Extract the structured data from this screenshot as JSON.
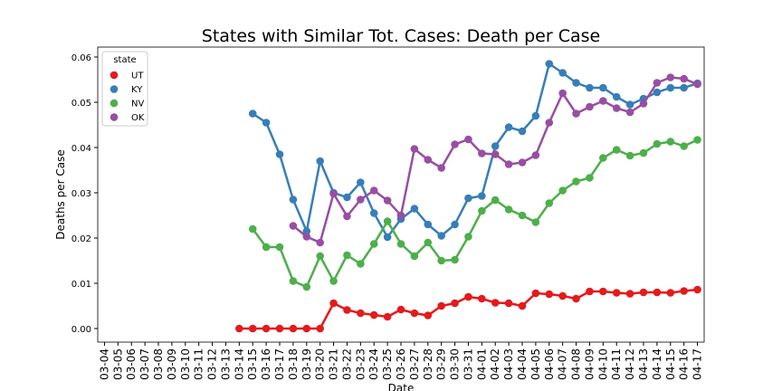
{
  "chart_data": {
    "type": "line",
    "title": "States with Similar Tot. Cases: Death per Case",
    "x_label": "Date",
    "y_label": "Deaths per Case",
    "legend_title": "state",
    "legend_position": "upper left",
    "markers": true,
    "categories": [
      "03-04",
      "03-05",
      "03-06",
      "03-07",
      "03-08",
      "03-09",
      "03-10",
      "03-11",
      "03-12",
      "03-13",
      "03-14",
      "03-15",
      "03-16",
      "03-17",
      "03-18",
      "03-19",
      "03-20",
      "03-21",
      "03-22",
      "03-23",
      "03-24",
      "03-25",
      "03-26",
      "03-27",
      "03-28",
      "03-29",
      "03-30",
      "03-31",
      "04-01",
      "04-02",
      "04-03",
      "04-04",
      "04-05",
      "04-06",
      "04-07",
      "04-08",
      "04-09",
      "04-10",
      "04-11",
      "04-12",
      "04-13",
      "04-14",
      "04-15",
      "04-16",
      "04-17"
    ],
    "ylim": [
      -0.003,
      0.0622
    ],
    "yticks": [
      {
        "value": 0,
        "label": "0.00"
      },
      {
        "value": 0.01,
        "label": "0.01"
      },
      {
        "value": 0.02,
        "label": "0.02"
      },
      {
        "value": 0.03,
        "label": "0.03"
      },
      {
        "value": 0.04,
        "label": "0.04"
      },
      {
        "value": 0.05,
        "label": "0.05"
      },
      {
        "value": 0.06,
        "label": "0.06"
      }
    ],
    "series": [
      {
        "name": "UT",
        "color": "#e41a1c",
        "values": [
          null,
          null,
          null,
          null,
          null,
          null,
          null,
          null,
          null,
          null,
          0,
          0,
          0,
          0,
          0,
          0,
          0,
          0.0056,
          0.0041,
          0.0034,
          0.003,
          0.0026,
          0.0042,
          0.0034,
          0.0029,
          0.005,
          0.0056,
          0.007,
          0.0066,
          0.0057,
          0.0056,
          0.005,
          0.0078,
          0.0076,
          0.0072,
          0.0066,
          0.0082,
          0.0082,
          0.0079,
          0.0077,
          0.008,
          0.008,
          0.0079,
          0.0083,
          0.0086
        ]
      },
      {
        "name": "KY",
        "color": "#377eb8",
        "values": [
          null,
          null,
          null,
          null,
          null,
          null,
          null,
          null,
          null,
          null,
          null,
          0.0475,
          0.0455,
          0.0385,
          0.0285,
          0.0215,
          0.037,
          0.03,
          0.029,
          0.0323,
          0.0255,
          0.0202,
          0.0242,
          0.0265,
          0.023,
          0.0205,
          0.023,
          0.0288,
          0.0293,
          0.0403,
          0.0445,
          0.0436,
          0.047,
          0.0585,
          0.0565,
          0.0543,
          0.0532,
          0.0532,
          0.0512,
          0.0495,
          0.0508,
          0.0522,
          0.0532,
          0.0532,
          0.0542
        ]
      },
      {
        "name": "NV",
        "color": "#4daf4a",
        "values": [
          null,
          null,
          null,
          null,
          null,
          null,
          null,
          null,
          null,
          null,
          null,
          0.022,
          0.018,
          0.018,
          0.0105,
          0.0092,
          0.016,
          0.0105,
          0.0162,
          0.0143,
          0.0187,
          0.0237,
          0.0187,
          0.016,
          0.019,
          0.015,
          0.0152,
          0.0203,
          0.026,
          0.0284,
          0.0263,
          0.025,
          0.0235,
          0.0277,
          0.0305,
          0.0325,
          0.0333,
          0.0377,
          0.0395,
          0.0382,
          0.0388,
          0.0408,
          0.0413,
          0.0403,
          0.0417
        ]
      },
      {
        "name": "OK",
        "color": "#984ea3",
        "values": [
          null,
          null,
          null,
          null,
          null,
          null,
          null,
          null,
          null,
          null,
          null,
          null,
          null,
          null,
          0.0227,
          0.0203,
          0.019,
          0.0298,
          0.0248,
          0.0285,
          0.0305,
          0.0283,
          0.025,
          0.0397,
          0.0373,
          0.0355,
          0.0407,
          0.0418,
          0.0387,
          0.0385,
          0.0363,
          0.0367,
          0.0383,
          0.0455,
          0.052,
          0.0475,
          0.049,
          0.0503,
          0.0487,
          0.0478,
          0.0497,
          0.0543,
          0.0555,
          0.0552,
          0.054
        ]
      }
    ]
  }
}
